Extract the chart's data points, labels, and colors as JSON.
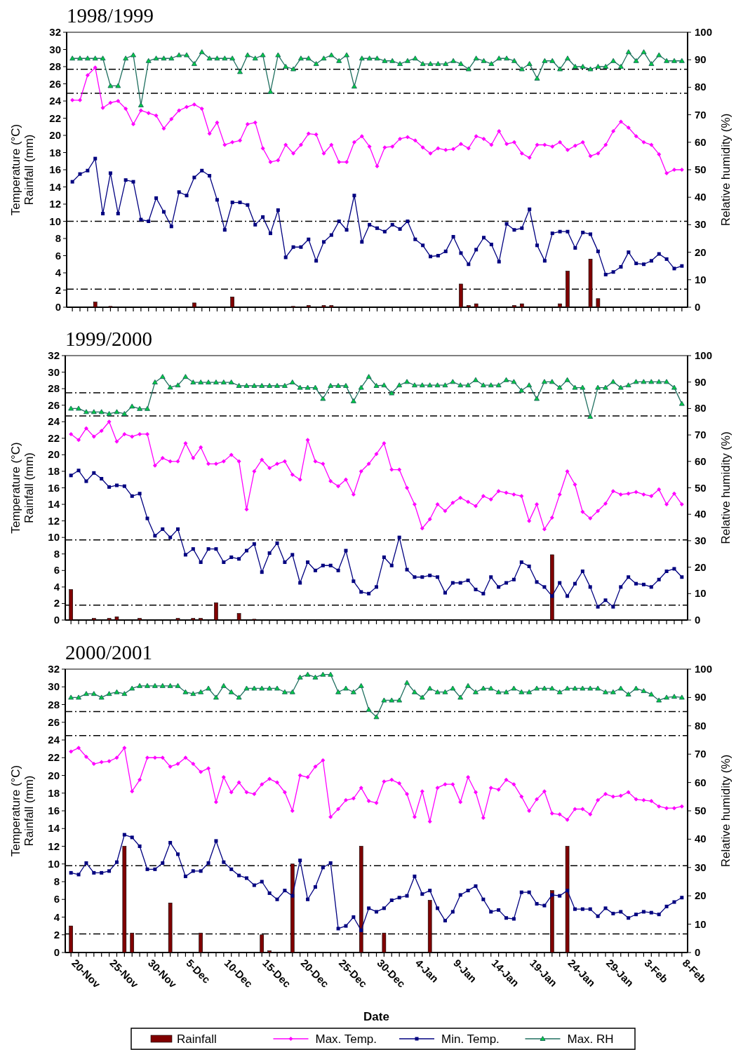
{
  "chart_data": [
    {
      "type": "line",
      "title": "1998/1999",
      "ylabel": "Temperature (°C)\nRainfall (mm)",
      "y2label": "Relative humidity (%)",
      "categories": [
        null,
        null,
        null,
        null,
        null,
        null,
        null,
        null,
        null,
        null,
        null,
        null,
        null,
        null,
        null,
        null,
        null,
        null,
        null,
        null,
        null,
        null,
        null,
        null,
        null,
        null,
        null,
        null,
        null,
        null,
        null,
        null,
        null,
        null,
        null,
        null,
        null,
        null,
        null,
        null,
        null,
        null,
        null,
        null,
        null,
        null,
        null,
        null,
        null,
        null,
        null,
        null,
        null,
        null,
        null,
        null,
        null,
        null,
        null,
        null,
        null,
        null,
        null,
        null,
        null,
        null,
        null,
        null,
        null,
        null,
        null,
        null,
        null,
        null,
        null,
        null,
        null,
        null,
        null,
        null,
        null
      ],
      "ylim": [
        0,
        32
      ],
      "yticks": [
        0,
        2,
        4,
        6,
        8,
        10,
        12,
        14,
        16,
        18,
        20,
        22,
        24,
        26,
        28,
        30,
        32
      ],
      "y2lim": [
        0,
        100
      ],
      "y2ticks": [
        0,
        10,
        20,
        30,
        40,
        50,
        60,
        70,
        80,
        90,
        100
      ],
      "series": [
        {
          "type": "bar",
          "color": "#800000",
          "values": [
            0,
            0,
            0,
            0.6,
            0,
            0.1,
            0,
            0,
            0,
            0,
            0,
            0,
            0,
            0,
            0,
            0,
            0.5,
            0,
            0,
            0,
            0,
            1.2,
            0,
            0,
            0,
            0,
            0,
            0,
            0,
            0.1,
            0,
            0.2,
            0,
            0.2,
            0.2,
            0,
            0,
            0,
            0,
            0,
            0,
            0,
            0,
            0,
            0,
            0,
            0,
            0,
            0,
            0,
            0,
            2.7,
            0.2,
            0.4,
            0,
            0,
            0,
            0,
            0.2,
            0.4,
            0,
            0,
            0,
            0,
            0.4,
            4.2,
            0,
            0,
            5.6,
            1.0,
            0,
            0,
            0,
            0,
            0,
            0,
            0,
            0,
            0,
            0,
            0
          ]
        },
        {
          "color": "#ff00ff",
          "marker": "diamond",
          "values": [
            24.1,
            24.1,
            27.0,
            27.9,
            23.2,
            23.8,
            24.0,
            23.1,
            21.3,
            22.9,
            22.6,
            22.3,
            20.8,
            21.9,
            22.9,
            23.3,
            23.6,
            23.1,
            20.2,
            21.5,
            18.9,
            19.2,
            19.4,
            21.3,
            21.5,
            18.5,
            16.9,
            17.1,
            18.9,
            17.9,
            18.9,
            20.2,
            20.1,
            17.9,
            18.9,
            16.9,
            16.9,
            19.2,
            19.9,
            18.7,
            16.4,
            18.6,
            18.7,
            19.6,
            19.8,
            19.4,
            18.6,
            17.9,
            18.5,
            18.3,
            18.4,
            19.0,
            18.5,
            19.9,
            19.6,
            18.9,
            20.5,
            19.0,
            19.2,
            17.9,
            17.4,
            18.9,
            18.9,
            18.7,
            19.2,
            18.3,
            18.8,
            19.2,
            17.6,
            17.9,
            18.9,
            20.5,
            21.6,
            20.9,
            19.9,
            19.2,
            18.9,
            17.8,
            15.6,
            16.0,
            16.0
          ]
        },
        {
          "color": "#000080",
          "marker": "square",
          "values": [
            14.6,
            15.5,
            15.9,
            17.3,
            10.9,
            15.6,
            10.9,
            14.8,
            14.6,
            10.2,
            10.0,
            12.7,
            11.1,
            9.4,
            13.4,
            13.0,
            15.1,
            15.9,
            15.3,
            12.5,
            9.0,
            12.2,
            12.2,
            11.9,
            9.6,
            10.5,
            8.6,
            11.3,
            5.8,
            7.0,
            7.0,
            7.9,
            5.4,
            7.6,
            8.4,
            10.0,
            9.0,
            13.0,
            7.6,
            9.6,
            9.2,
            8.8,
            9.6,
            9.1,
            10.0,
            7.9,
            7.2,
            5.9,
            6.0,
            6.5,
            8.2,
            6.3,
            5.0,
            6.7,
            8.1,
            7.3,
            5.3,
            9.7,
            9.0,
            9.2,
            11.4,
            7.2,
            5.4,
            8.6,
            8.8,
            8.8,
            6.9,
            8.7,
            8.5,
            6.5,
            3.8,
            4.1,
            4.7,
            6.4,
            5.1,
            5.0,
            5.4,
            6.2,
            5.6,
            4.5,
            4.8
          ]
        },
        {
          "axis": "y2",
          "color": "#1f6f5f",
          "marker": "triangle",
          "values": [
            90.5,
            90.5,
            90.5,
            90.5,
            90.5,
            80.5,
            80.5,
            90.5,
            91.7,
            73.5,
            89.6,
            90.5,
            90.5,
            90.5,
            91.7,
            91.7,
            88.5,
            92.8,
            90.5,
            90.5,
            90.5,
            90.5,
            85.6,
            91.7,
            90.5,
            91.7,
            78.4,
            91.7,
            87.5,
            86.6,
            90.5,
            90.5,
            88.5,
            90.5,
            91.7,
            89.6,
            91.7,
            80.3,
            90.5,
            90.5,
            90.5,
            89.6,
            89.6,
            88.5,
            89.6,
            90.5,
            88.5,
            88.5,
            88.5,
            88.5,
            89.6,
            88.5,
            86.6,
            90.5,
            89.6,
            88.5,
            90.5,
            90.5,
            89.6,
            86.6,
            88.5,
            83.2,
            89.6,
            89.6,
            86.6,
            90.5,
            87.5,
            87.5,
            86.6,
            87.5,
            87.5,
            89.6,
            87.5,
            92.8,
            89.6,
            92.8,
            88.5,
            91.7,
            89.6,
            89.6,
            89.6
          ]
        }
      ],
      "ref_lines": [
        {
          "axis": "y",
          "value": 27.7,
          "line_style": "dashed"
        },
        {
          "axis": "y",
          "value": 24.9,
          "line_style": "dashed"
        },
        {
          "axis": "y",
          "value": 10.0,
          "line_style": "dashed"
        },
        {
          "axis": "y",
          "value": 2.1,
          "line_style": "dashed"
        }
      ]
    },
    {
      "type": "line",
      "title": "1999/2000",
      "ylabel": "Temperature (°C)\nRainfall (mm)",
      "y2label": "Relative humidity (%)",
      "categories": [
        null,
        null,
        null,
        null,
        null,
        null,
        null,
        null,
        null,
        null,
        null,
        null,
        null,
        null,
        null,
        null,
        null,
        null,
        null,
        null,
        null,
        null,
        null,
        null,
        null,
        null,
        null,
        null,
        null,
        null,
        null,
        null,
        null,
        null,
        null,
        null,
        null,
        null,
        null,
        null,
        null,
        null,
        null,
        null,
        null,
        null,
        null,
        null,
        null,
        null,
        null,
        null,
        null,
        null,
        null,
        null,
        null,
        null,
        null,
        null,
        null,
        null,
        null,
        null,
        null,
        null,
        null,
        null,
        null,
        null,
        null,
        null,
        null,
        null,
        null,
        null,
        null,
        null,
        null,
        null,
        null
      ],
      "ylim": [
        0,
        32
      ],
      "yticks": [
        0,
        2,
        4,
        6,
        8,
        10,
        12,
        14,
        16,
        18,
        20,
        22,
        24,
        26,
        28,
        30,
        32
      ],
      "y2lim": [
        0,
        100
      ],
      "y2ticks": [
        0,
        10,
        20,
        30,
        40,
        50,
        60,
        70,
        80,
        90,
        100
      ],
      "series": [
        {
          "type": "bar",
          "color": "#800000",
          "values": [
            3.7,
            0,
            0,
            0.2,
            0,
            0.2,
            0.4,
            0,
            0,
            0.2,
            0,
            0,
            0,
            0,
            0.2,
            0,
            0.2,
            0.2,
            0,
            2.1,
            0,
            0,
            0.8,
            0,
            0.1,
            0,
            0,
            0,
            0,
            0,
            0,
            0,
            0,
            0,
            0,
            0,
            0,
            0,
            0,
            0,
            0,
            0,
            0,
            0,
            0,
            0,
            0,
            0,
            0,
            0,
            0,
            0,
            0,
            0,
            0,
            0,
            0,
            0,
            0,
            0,
            0,
            0,
            0,
            7.9,
            0,
            0,
            0,
            0,
            0,
            0,
            0,
            0,
            0,
            0,
            0,
            0,
            0,
            0,
            0,
            0,
            0
          ]
        },
        {
          "color": "#ff00ff",
          "marker": "diamond",
          "values": [
            22.5,
            21.8,
            23.2,
            22.2,
            22.9,
            24.0,
            21.6,
            22.5,
            22.2,
            22.5,
            22.5,
            18.7,
            19.6,
            19.2,
            19.2,
            21.4,
            19.6,
            20.9,
            18.9,
            18.9,
            19.2,
            20.0,
            19.2,
            13.4,
            18.0,
            19.4,
            18.4,
            18.9,
            19.2,
            17.6,
            17.0,
            21.8,
            19.2,
            18.9,
            16.8,
            16.2,
            17.0,
            15.2,
            18.0,
            18.9,
            20.1,
            21.4,
            18.2,
            18.2,
            16.0,
            14.0,
            11.1,
            12.2,
            14.0,
            13.2,
            14.2,
            14.8,
            14.3,
            13.8,
            15.0,
            14.6,
            15.6,
            15.4,
            15.2,
            15.0,
            12.0,
            14.0,
            11.0,
            12.4,
            15.2,
            18.0,
            16.4,
            13.1,
            12.3,
            13.2,
            14.1,
            15.6,
            15.2,
            15.3,
            15.5,
            15.2,
            15.0,
            15.8,
            14.0,
            15.3,
            14.0
          ]
        },
        {
          "color": "#000080",
          "marker": "square",
          "values": [
            17.5,
            18.1,
            16.8,
            17.8,
            17.1,
            16.1,
            16.3,
            16.2,
            15.0,
            15.3,
            12.3,
            10.2,
            11.0,
            10.0,
            11.0,
            7.9,
            8.6,
            7.0,
            8.6,
            8.6,
            7.0,
            7.6,
            7.4,
            8.4,
            9.2,
            5.8,
            8.1,
            9.3,
            7.0,
            7.9,
            4.5,
            7.0,
            6.0,
            6.6,
            6.6,
            6.0,
            8.4,
            4.7,
            3.4,
            3.2,
            4.0,
            7.6,
            6.6,
            10.0,
            6.1,
            5.2,
            5.2,
            5.4,
            5.2,
            3.3,
            4.5,
            4.5,
            4.8,
            3.7,
            3.2,
            5.2,
            4.0,
            4.5,
            4.9,
            7.0,
            6.5,
            4.6,
            4.0,
            2.9,
            4.5,
            2.9,
            4.4,
            5.9,
            4.0,
            1.6,
            2.4,
            1.6,
            4.0,
            5.2,
            4.4,
            4.3,
            4.0,
            4.9,
            5.9,
            6.2,
            5.2
          ]
        },
        {
          "axis": "y2",
          "color": "#1f6f5f",
          "marker": "triangle",
          "values": [
            80.0,
            80.0,
            78.7,
            78.7,
            78.7,
            78.0,
            78.7,
            78.0,
            80.8,
            79.9,
            79.9,
            89.9,
            92.0,
            88.0,
            88.8,
            92.0,
            89.9,
            89.9,
            89.9,
            89.9,
            89.9,
            89.9,
            88.6,
            88.6,
            88.6,
            88.6,
            88.6,
            88.6,
            88.6,
            89.9,
            87.9,
            87.9,
            87.9,
            83.7,
            88.6,
            88.6,
            88.6,
            82.8,
            87.9,
            92.0,
            88.6,
            88.8,
            85.8,
            88.8,
            90.1,
            88.8,
            88.8,
            88.8,
            88.8,
            88.8,
            90.1,
            88.8,
            88.8,
            90.8,
            88.8,
            88.8,
            88.8,
            90.8,
            90.1,
            86.8,
            88.8,
            83.7,
            90.1,
            90.1,
            87.9,
            90.8,
            87.9,
            87.9,
            76.9,
            87.9,
            87.9,
            90.1,
            87.9,
            88.8,
            90.1,
            90.1,
            90.1,
            90.1,
            90.1,
            87.9,
            81.8
          ]
        }
      ],
      "ref_lines": [
        {
          "axis": "y",
          "value": 27.5,
          "line_style": "dashed"
        },
        {
          "axis": "y",
          "value": 24.7,
          "line_style": "dashed"
        },
        {
          "axis": "y",
          "value": 9.7,
          "line_style": "dashed"
        },
        {
          "axis": "y",
          "value": 1.8,
          "line_style": "dashed"
        }
      ]
    },
    {
      "type": "line",
      "title": "2000/2001",
      "xlabel": "Date",
      "ylabel": "Temperature (°C)\nRainfall (mm)",
      "y2label": "Relative humidity (%)",
      "legend": "bottom",
      "categories": [
        "20-Nov",
        null,
        null,
        null,
        null,
        "25-Nov",
        null,
        null,
        null,
        null,
        "30-Nov",
        null,
        null,
        null,
        null,
        "5-Dec",
        null,
        null,
        null,
        null,
        "10-Dec",
        null,
        null,
        null,
        null,
        "15-Dec",
        null,
        null,
        null,
        null,
        "20-Dec",
        null,
        null,
        null,
        null,
        "25-Dec",
        null,
        null,
        null,
        null,
        "30-Dec",
        null,
        null,
        null,
        null,
        "4-Jan",
        null,
        null,
        null,
        null,
        "9-Jan",
        null,
        null,
        null,
        null,
        "14-Jan",
        null,
        null,
        null,
        null,
        "19-Jan",
        null,
        null,
        null,
        null,
        "24-Jan",
        null,
        null,
        null,
        null,
        "29-Jan",
        null,
        null,
        null,
        null,
        "3-Feb",
        null,
        null,
        null,
        null,
        "8-Feb"
      ],
      "ylim": [
        0,
        32
      ],
      "yticks": [
        0,
        2,
        4,
        6,
        8,
        10,
        12,
        14,
        16,
        18,
        20,
        22,
        24,
        26,
        28,
        30,
        32
      ],
      "y2lim": [
        0,
        100
      ],
      "y2ticks": [
        0,
        10,
        20,
        30,
        40,
        50,
        60,
        70,
        80,
        90,
        100
      ],
      "series": [
        {
          "type": "bar",
          "name": "Rainfall",
          "color": "#800000",
          "values": [
            3.0,
            0,
            0,
            0,
            0,
            0,
            0,
            12.0,
            2.2,
            0,
            0,
            0,
            0,
            5.6,
            0,
            0,
            0,
            2.2,
            0,
            0,
            0,
            0,
            0,
            0,
            0,
            2.0,
            0.2,
            0,
            0,
            10.0,
            0,
            0,
            0,
            0,
            0,
            0,
            0,
            0,
            12.0,
            0,
            0,
            2.2,
            0,
            0,
            0,
            0,
            0,
            5.9,
            0,
            0,
            0,
            0,
            0,
            0,
            0,
            0,
            0,
            0,
            0,
            0,
            0,
            0,
            0,
            7.0,
            0,
            12.0,
            0,
            0,
            0,
            0,
            0,
            0,
            0,
            0,
            0,
            0,
            0,
            0,
            0,
            0,
            0
          ]
        },
        {
          "name": "Max. Temp.",
          "color": "#ff00ff",
          "marker": "diamond",
          "values": [
            22.7,
            23.1,
            22.1,
            21.3,
            21.5,
            21.6,
            22.0,
            23.1,
            18.2,
            19.5,
            22.0,
            22.0,
            22.0,
            21.0,
            21.3,
            22.0,
            21.3,
            20.4,
            20.8,
            17.0,
            19.8,
            18.1,
            19.2,
            18.1,
            17.9,
            19.0,
            19.6,
            19.2,
            18.1,
            16.0,
            20.0,
            19.8,
            21.0,
            21.7,
            15.3,
            16.2,
            17.2,
            17.4,
            18.6,
            17.1,
            16.9,
            19.3,
            19.5,
            19.1,
            17.9,
            15.3,
            18.2,
            14.8,
            18.6,
            19.0,
            19.0,
            17.0,
            19.8,
            18.1,
            15.2,
            18.6,
            18.4,
            19.5,
            19.0,
            17.6,
            16.0,
            17.3,
            18.2,
            15.7,
            15.6,
            15.0,
            16.2,
            16.2,
            15.6,
            17.2,
            17.9,
            17.6,
            17.7,
            18.1,
            17.3,
            17.2,
            17.1,
            16.5,
            16.3,
            16.3,
            16.5
          ]
        },
        {
          "name": "Min. Temp.",
          "color": "#000080",
          "marker": "square",
          "values": [
            9.0,
            8.8,
            10.1,
            9.0,
            9.0,
            9.2,
            10.2,
            13.3,
            13.0,
            12.0,
            9.4,
            9.4,
            10.1,
            12.4,
            11.1,
            8.6,
            9.2,
            9.2,
            10.1,
            12.6,
            10.2,
            9.4,
            8.7,
            8.4,
            7.6,
            8.0,
            6.7,
            6.0,
            7.0,
            6.4,
            10.4,
            6.0,
            7.4,
            9.6,
            10.1,
            2.7,
            3.0,
            4.0,
            2.5,
            5.0,
            4.6,
            5.0,
            5.9,
            6.2,
            6.4,
            8.6,
            6.6,
            7.0,
            5.0,
            3.6,
            4.6,
            6.5,
            7.0,
            7.5,
            6.0,
            4.6,
            4.8,
            3.9,
            3.8,
            6.8,
            6.8,
            5.5,
            5.3,
            6.5,
            6.4,
            7.0,
            4.9,
            4.9,
            4.9,
            4.1,
            5.0,
            4.4,
            4.6,
            3.9,
            4.3,
            4.6,
            4.5,
            4.3,
            5.2,
            5.7,
            6.2
          ]
        },
        {
          "name": "Max. RH",
          "axis": "y2",
          "color": "#1f6f5f",
          "marker": "triangle",
          "values": [
            90.0,
            90.0,
            91.3,
            91.3,
            90.0,
            91.3,
            91.9,
            91.3,
            93.2,
            94.1,
            94.1,
            94.1,
            94.1,
            94.1,
            94.1,
            91.9,
            91.3,
            91.9,
            93.2,
            90.0,
            94.1,
            91.9,
            90.0,
            93.2,
            93.2,
            93.2,
            93.2,
            93.2,
            91.9,
            91.9,
            97.1,
            98.1,
            97.1,
            98.1,
            98.1,
            91.9,
            93.2,
            91.9,
            94.1,
            85.7,
            83.1,
            89.0,
            89.0,
            89.0,
            95.2,
            91.9,
            90.0,
            93.2,
            91.9,
            91.9,
            93.2,
            90.0,
            94.1,
            91.9,
            93.2,
            93.2,
            91.9,
            91.9,
            93.2,
            91.9,
            91.9,
            93.2,
            93.2,
            93.2,
            91.9,
            93.2,
            93.2,
            93.2,
            93.2,
            93.2,
            91.9,
            91.9,
            93.2,
            91.1,
            93.2,
            92.3,
            91.1,
            89.0,
            90.0,
            90.3,
            90.0
          ]
        }
      ],
      "ref_lines": [
        {
          "axis": "y",
          "value": 27.2,
          "line_style": "dashed"
        },
        {
          "axis": "y",
          "value": 24.5,
          "line_style": "dashed"
        },
        {
          "axis": "y",
          "value": 9.8,
          "line_style": "dashed"
        },
        {
          "axis": "y",
          "value": 2.1,
          "line_style": "dashed"
        }
      ]
    }
  ]
}
